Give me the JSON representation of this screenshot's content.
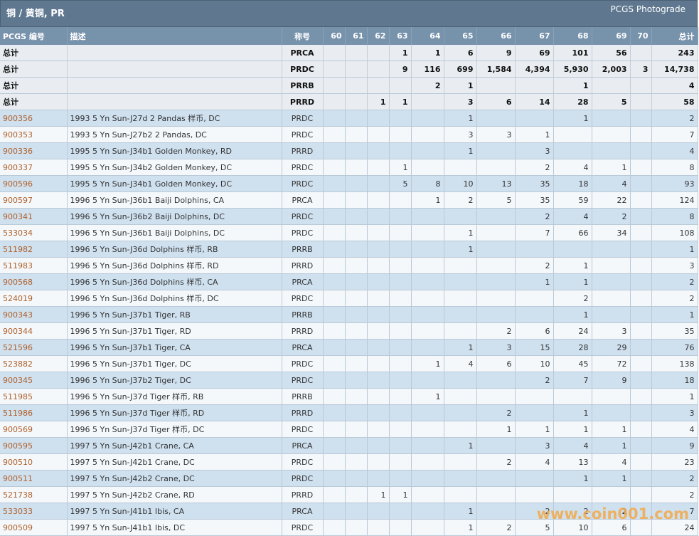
{
  "header": {
    "title": "铜 / 黄铜, PR",
    "subtitle": "PCGS Photograde"
  },
  "columns": [
    "PCGS 编号",
    "描述",
    "称号",
    "60",
    "61",
    "62",
    "63",
    "64",
    "65",
    "66",
    "67",
    "68",
    "69",
    "70",
    "总计"
  ],
  "totals": [
    {
      "label": "总计",
      "desg": "PRCA",
      "g": [
        "",
        "",
        "",
        "1",
        "1",
        "6",
        "9",
        "69",
        "101",
        "56",
        ""
      ],
      "total": "243"
    },
    {
      "label": "总计",
      "desg": "PRDC",
      "g": [
        "",
        "",
        "",
        "9",
        "116",
        "699",
        "1,584",
        "4,394",
        "5,930",
        "2,003",
        "3"
      ],
      "total": "14,738"
    },
    {
      "label": "总计",
      "desg": "PRRB",
      "g": [
        "",
        "",
        "",
        "",
        "2",
        "1",
        "",
        "",
        "1",
        "",
        ""
      ],
      "total": "4"
    },
    {
      "label": "总计",
      "desg": "PRRD",
      "g": [
        "",
        "",
        "1",
        "1",
        "",
        "3",
        "6",
        "14",
        "28",
        "5",
        ""
      ],
      "total": "58"
    }
  ],
  "rows": [
    {
      "pcgs": "900356",
      "desc": "1993 5 Yn Sun-J27d 2 Pandas 样币, DC",
      "desg": "PRDC",
      "g": [
        "",
        "",
        "",
        "",
        "",
        "1",
        "",
        "",
        "1",
        "",
        ""
      ],
      "total": "2"
    },
    {
      "pcgs": "900353",
      "desc": "1993 5 Yn Sun-J27b2 2 Pandas, DC",
      "desg": "PRDC",
      "g": [
        "",
        "",
        "",
        "",
        "",
        "3",
        "3",
        "1",
        "",
        "",
        ""
      ],
      "total": "7"
    },
    {
      "pcgs": "900336",
      "desc": "1995 5 Yn Sun-J34b1 Golden Monkey, RD",
      "desg": "PRRD",
      "g": [
        "",
        "",
        "",
        "",
        "",
        "1",
        "",
        "3",
        "",
        "",
        ""
      ],
      "total": "4"
    },
    {
      "pcgs": "900337",
      "desc": "1995 5 Yn Sun-J34b2 Golden Monkey, DC",
      "desg": "PRDC",
      "g": [
        "",
        "",
        "",
        "1",
        "",
        "",
        "",
        "2",
        "4",
        "1",
        ""
      ],
      "total": "8"
    },
    {
      "pcgs": "900596",
      "desc": "1995 5 Yn Sun-J34b1 Golden Monkey, DC",
      "desg": "PRDC",
      "g": [
        "",
        "",
        "",
        "5",
        "8",
        "10",
        "13",
        "35",
        "18",
        "4",
        ""
      ],
      "total": "93"
    },
    {
      "pcgs": "900597",
      "desc": "1996 5 Yn Sun-J36b1 Baiji Dolphins, CA",
      "desg": "PRCA",
      "g": [
        "",
        "",
        "",
        "",
        "1",
        "2",
        "5",
        "35",
        "59",
        "22",
        ""
      ],
      "total": "124"
    },
    {
      "pcgs": "900341",
      "desc": "1996 5 Yn Sun-J36b2 Baiji Dolphins, DC",
      "desg": "PRDC",
      "g": [
        "",
        "",
        "",
        "",
        "",
        "",
        "",
        "2",
        "4",
        "2",
        ""
      ],
      "total": "8"
    },
    {
      "pcgs": "533034",
      "desc": "1996 5 Yn Sun-J36b1 Baiji Dolphins, DC",
      "desg": "PRDC",
      "g": [
        "",
        "",
        "",
        "",
        "",
        "1",
        "",
        "7",
        "66",
        "34",
        ""
      ],
      "total": "108"
    },
    {
      "pcgs": "511982",
      "desc": "1996 5 Yn Sun-J36d Dolphins 样币, RB",
      "desg": "PRRB",
      "g": [
        "",
        "",
        "",
        "",
        "",
        "1",
        "",
        "",
        "",
        "",
        ""
      ],
      "total": "1"
    },
    {
      "pcgs": "511983",
      "desc": "1996 5 Yn Sun-J36d Dolphins 样币, RD",
      "desg": "PRRD",
      "g": [
        "",
        "",
        "",
        "",
        "",
        "",
        "",
        "2",
        "1",
        "",
        ""
      ],
      "total": "3"
    },
    {
      "pcgs": "900568",
      "desc": "1996 5 Yn Sun-J36d Dolphins 样币, CA",
      "desg": "PRCA",
      "g": [
        "",
        "",
        "",
        "",
        "",
        "",
        "",
        "1",
        "1",
        "",
        ""
      ],
      "total": "2"
    },
    {
      "pcgs": "524019",
      "desc": "1996 5 Yn Sun-J36d Dolphins 样币, DC",
      "desg": "PRDC",
      "g": [
        "",
        "",
        "",
        "",
        "",
        "",
        "",
        "",
        "2",
        "",
        ""
      ],
      "total": "2"
    },
    {
      "pcgs": "900343",
      "desc": "1996 5 Yn Sun-J37b1 Tiger, RB",
      "desg": "PRRB",
      "g": [
        "",
        "",
        "",
        "",
        "",
        "",
        "",
        "",
        "1",
        "",
        ""
      ],
      "total": "1"
    },
    {
      "pcgs": "900344",
      "desc": "1996 5 Yn Sun-J37b1 Tiger, RD",
      "desg": "PRRD",
      "g": [
        "",
        "",
        "",
        "",
        "",
        "",
        "2",
        "6",
        "24",
        "3",
        ""
      ],
      "total": "35"
    },
    {
      "pcgs": "521596",
      "desc": "1996 5 Yn Sun-J37b1 Tiger, CA",
      "desg": "PRCA",
      "g": [
        "",
        "",
        "",
        "",
        "",
        "1",
        "3",
        "15",
        "28",
        "29",
        ""
      ],
      "total": "76"
    },
    {
      "pcgs": "523882",
      "desc": "1996 5 Yn Sun-J37b1 Tiger, DC",
      "desg": "PRDC",
      "g": [
        "",
        "",
        "",
        "",
        "1",
        "4",
        "6",
        "10",
        "45",
        "72",
        ""
      ],
      "total": "138"
    },
    {
      "pcgs": "900345",
      "desc": "1996 5 Yn Sun-J37b2 Tiger, DC",
      "desg": "PRDC",
      "g": [
        "",
        "",
        "",
        "",
        "",
        "",
        "",
        "2",
        "7",
        "9",
        ""
      ],
      "total": "18"
    },
    {
      "pcgs": "511985",
      "desc": "1996 5 Yn Sun-J37d Tiger 样币, RB",
      "desg": "PRRB",
      "g": [
        "",
        "",
        "",
        "",
        "1",
        "",
        "",
        "",
        "",
        "",
        ""
      ],
      "total": "1"
    },
    {
      "pcgs": "511986",
      "desc": "1996 5 Yn Sun-J37d Tiger 样币, RD",
      "desg": "PRRD",
      "g": [
        "",
        "",
        "",
        "",
        "",
        "",
        "2",
        "",
        "1",
        "",
        ""
      ],
      "total": "3"
    },
    {
      "pcgs": "900569",
      "desc": "1996 5 Yn Sun-J37d Tiger 样币, DC",
      "desg": "PRDC",
      "g": [
        "",
        "",
        "",
        "",
        "",
        "",
        "1",
        "1",
        "1",
        "1",
        ""
      ],
      "total": "4"
    },
    {
      "pcgs": "900595",
      "desc": "1997 5 Yn Sun-J42b1 Crane, CA",
      "desg": "PRCA",
      "g": [
        "",
        "",
        "",
        "",
        "",
        "1",
        "",
        "3",
        "4",
        "1",
        ""
      ],
      "total": "9"
    },
    {
      "pcgs": "900510",
      "desc": "1997 5 Yn Sun-J42b1 Crane, DC",
      "desg": "PRDC",
      "g": [
        "",
        "",
        "",
        "",
        "",
        "",
        "2",
        "4",
        "13",
        "4",
        ""
      ],
      "total": "23"
    },
    {
      "pcgs": "900511",
      "desc": "1997 5 Yn Sun-J42b2 Crane, DC",
      "desg": "PRDC",
      "g": [
        "",
        "",
        "",
        "",
        "",
        "",
        "",
        "",
        "1",
        "1",
        ""
      ],
      "total": "2"
    },
    {
      "pcgs": "521738",
      "desc": "1997 5 Yn Sun-J42b2 Crane, RD",
      "desg": "PRRD",
      "g": [
        "",
        "",
        "1",
        "1",
        "",
        "",
        "",
        "",
        "",
        "",
        ""
      ],
      "total": "2"
    },
    {
      "pcgs": "533033",
      "desc": "1997 5 Yn Sun-J41b1 Ibis, CA",
      "desg": "PRCA",
      "g": [
        "",
        "",
        "",
        "",
        "",
        "1",
        "",
        "2",
        "2",
        "2",
        ""
      ],
      "total": "7"
    },
    {
      "pcgs": "900509",
      "desc": "1997 5 Yn Sun-J41b1 Ibis, DC",
      "desg": "PRDC",
      "g": [
        "",
        "",
        "",
        "",
        "",
        "1",
        "2",
        "5",
        "10",
        "6",
        ""
      ],
      "total": "24"
    }
  ],
  "watermark": "www.coin001.com"
}
